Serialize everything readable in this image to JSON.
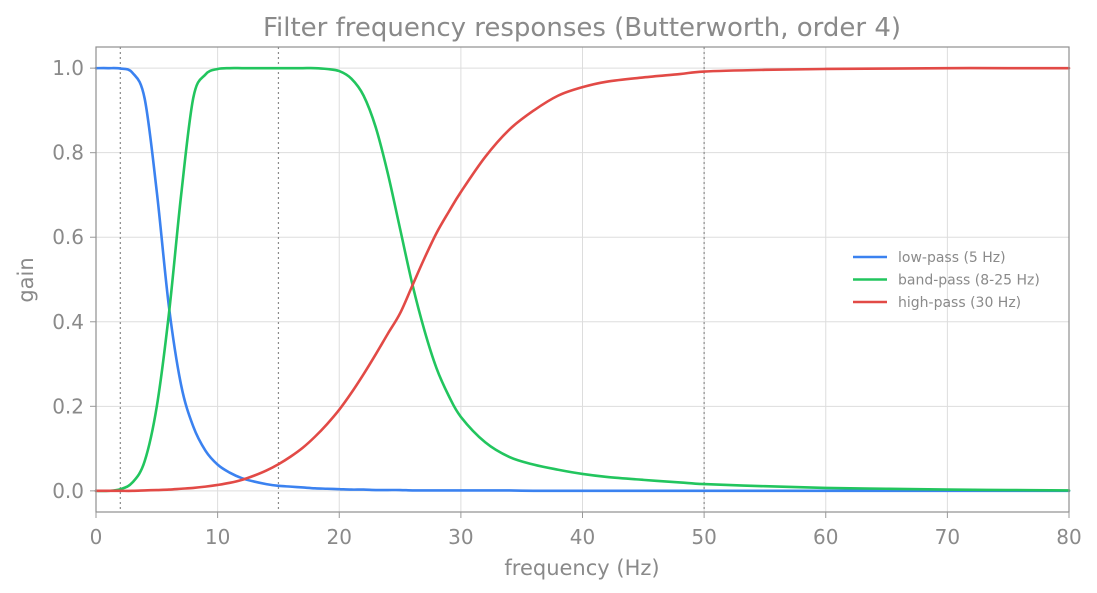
{
  "chart_data": {
    "type": "line",
    "title": "Filter frequency responses (Butterworth, order 4)",
    "xlabel": "frequency (Hz)",
    "ylabel": "gain",
    "xlim": [
      0,
      80
    ],
    "ylim": [
      -0.05,
      1.05
    ],
    "x_ticks": [
      0,
      10,
      20,
      30,
      40,
      50,
      60,
      70,
      80
    ],
    "y_ticks": [
      0.0,
      0.2,
      0.4,
      0.6,
      0.8,
      1.0
    ],
    "x_tick_labels": [
      "0",
      "10",
      "20",
      "30",
      "40",
      "50",
      "60",
      "70",
      "80"
    ],
    "y_tick_labels": [
      "0.0",
      "0.2",
      "0.4",
      "0.6",
      "0.8",
      "1.0"
    ],
    "grid": true,
    "legend_position": "right",
    "vertical_markers": [
      2,
      15,
      50
    ],
    "x": [
      0,
      1,
      2,
      3,
      4,
      5,
      6,
      7,
      8,
      9,
      10,
      11,
      12,
      13,
      14,
      15,
      16,
      17,
      18,
      19,
      20,
      21,
      22,
      23,
      24,
      25,
      26,
      27,
      28,
      29,
      30,
      32,
      34,
      36,
      38,
      40,
      42,
      45,
      48,
      50,
      55,
      60,
      65,
      70,
      75,
      80
    ],
    "series": [
      {
        "name": "low-pass (5 Hz)",
        "color": "#3b82f0",
        "values": [
          1.0,
          1.0,
          0.999,
          0.989,
          0.928,
          0.707,
          0.435,
          0.25,
          0.152,
          0.095,
          0.062,
          0.043,
          0.03,
          0.022,
          0.016,
          0.012,
          0.01,
          0.008,
          0.006,
          0.005,
          0.004,
          0.003,
          0.003,
          0.002,
          0.002,
          0.002,
          0.001,
          0.001,
          0.001,
          0.001,
          0.001,
          0.001,
          0.001,
          0.0,
          0.0,
          0.0,
          0.0,
          0.0,
          0.0,
          0.0,
          0.0,
          0.0,
          0.0,
          0.0,
          0.0,
          0.0
        ]
      },
      {
        "name": "band-pass (8-25 Hz)",
        "color": "#22c55e",
        "values": [
          0.0,
          0.0,
          0.004,
          0.02,
          0.07,
          0.2,
          0.42,
          0.7,
          0.93,
          0.985,
          0.998,
          1.0,
          1.0,
          1.0,
          1.0,
          1.0,
          1.0,
          1.0,
          1.0,
          0.998,
          0.993,
          0.975,
          0.935,
          0.86,
          0.75,
          0.62,
          0.49,
          0.38,
          0.29,
          0.225,
          0.175,
          0.115,
          0.08,
          0.062,
          0.05,
          0.04,
          0.033,
          0.026,
          0.02,
          0.016,
          0.011,
          0.007,
          0.005,
          0.003,
          0.002,
          0.001
        ]
      },
      {
        "name": "high-pass (30 Hz)",
        "color": "#e24a46",
        "values": [
          0.0,
          0.0,
          0.0,
          0.0,
          0.001,
          0.002,
          0.003,
          0.005,
          0.007,
          0.01,
          0.014,
          0.019,
          0.026,
          0.036,
          0.048,
          0.063,
          0.081,
          0.102,
          0.128,
          0.158,
          0.192,
          0.232,
          0.276,
          0.323,
          0.372,
          0.42,
          0.485,
          0.55,
          0.61,
          0.66,
          0.707,
          0.79,
          0.855,
          0.9,
          0.935,
          0.955,
          0.968,
          0.978,
          0.986,
          0.992,
          0.996,
          0.998,
          0.999,
          1.0,
          1.0,
          1.0
        ]
      }
    ]
  }
}
